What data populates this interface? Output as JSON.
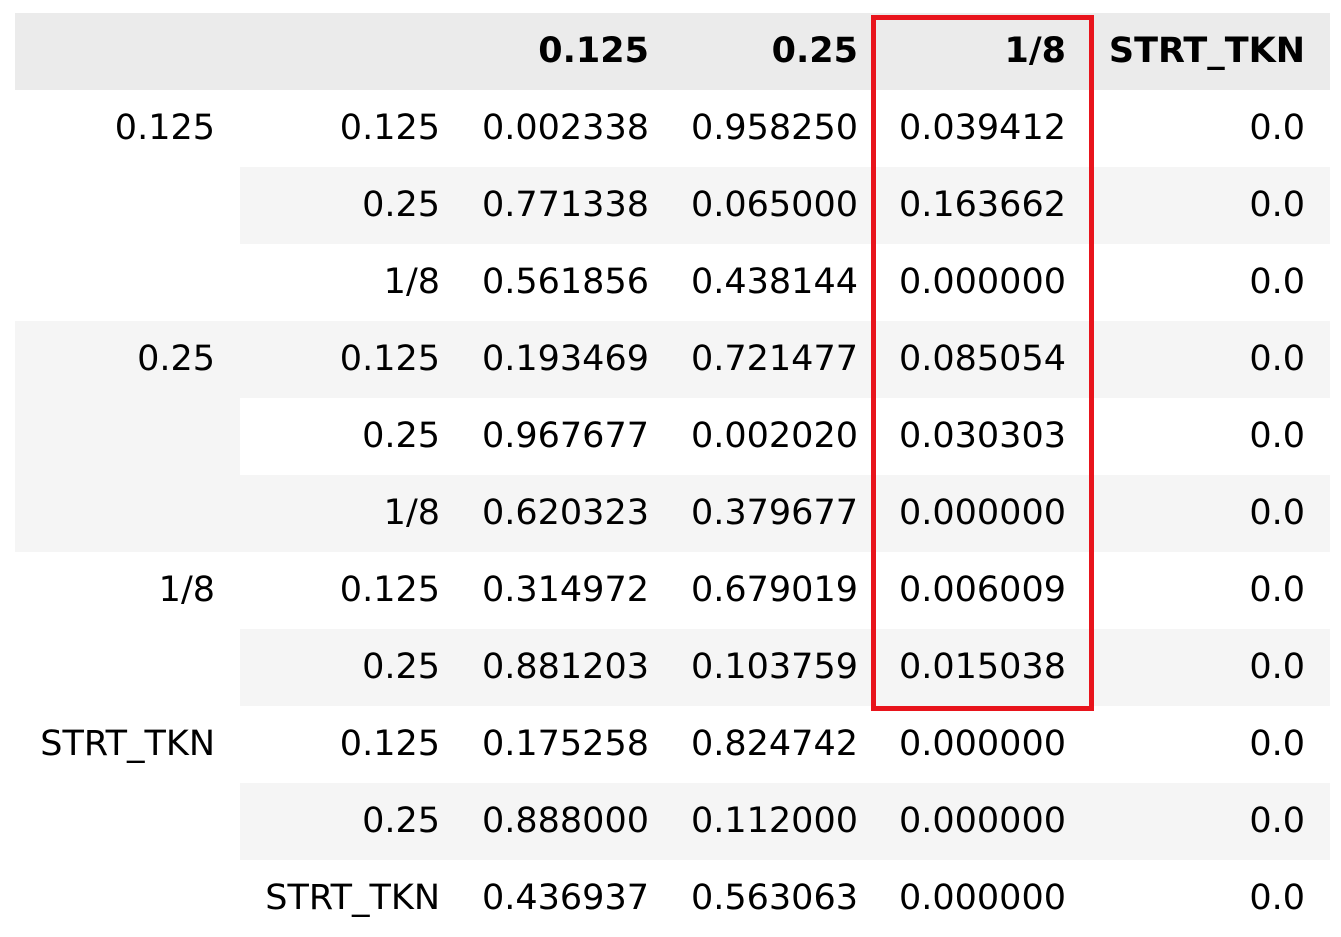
{
  "table": {
    "columns": [
      "",
      "",
      "0.125",
      "0.25",
      "1/8",
      "STRT_TKN"
    ],
    "rows": [
      {
        "group": "0.125",
        "sub": "0.125",
        "v1": "0.002338",
        "v2": "0.958250",
        "v3": "0.039412",
        "v4": "0.0"
      },
      {
        "group": "",
        "sub": "0.25",
        "v1": "0.771338",
        "v2": "0.065000",
        "v3": "0.163662",
        "v4": "0.0"
      },
      {
        "group": "",
        "sub": "1/8",
        "v1": "0.561856",
        "v2": "0.438144",
        "v3": "0.000000",
        "v4": "0.0"
      },
      {
        "group": "0.25",
        "sub": "0.125",
        "v1": "0.193469",
        "v2": "0.721477",
        "v3": "0.085054",
        "v4": "0.0"
      },
      {
        "group": "",
        "sub": "0.25",
        "v1": "0.967677",
        "v2": "0.002020",
        "v3": "0.030303",
        "v4": "0.0"
      },
      {
        "group": "",
        "sub": "1/8",
        "v1": "0.620323",
        "v2": "0.379677",
        "v3": "0.000000",
        "v4": "0.0"
      },
      {
        "group": "1/8",
        "sub": "0.125",
        "v1": "0.314972",
        "v2": "0.679019",
        "v3": "0.006009",
        "v4": "0.0"
      },
      {
        "group": "",
        "sub": "0.25",
        "v1": "0.881203",
        "v2": "0.103759",
        "v3": "0.015038",
        "v4": "0.0"
      },
      {
        "group": "STRT_TKN",
        "sub": "0.125",
        "v1": "0.175258",
        "v2": "0.824742",
        "v3": "0.000000",
        "v4": "0.0"
      },
      {
        "group": "",
        "sub": "0.25",
        "v1": "0.888000",
        "v2": "0.112000",
        "v3": "0.000000",
        "v4": "0.0"
      },
      {
        "group": "",
        "sub": "STRT_TKN",
        "v1": "0.436937",
        "v2": "0.563063",
        "v3": "0.000000",
        "v4": "0.0"
      }
    ]
  },
  "colors": {
    "header_bg": "#ebebeb",
    "stripe_bg": "#f5f5f5",
    "highlight_border": "#e8141c"
  }
}
